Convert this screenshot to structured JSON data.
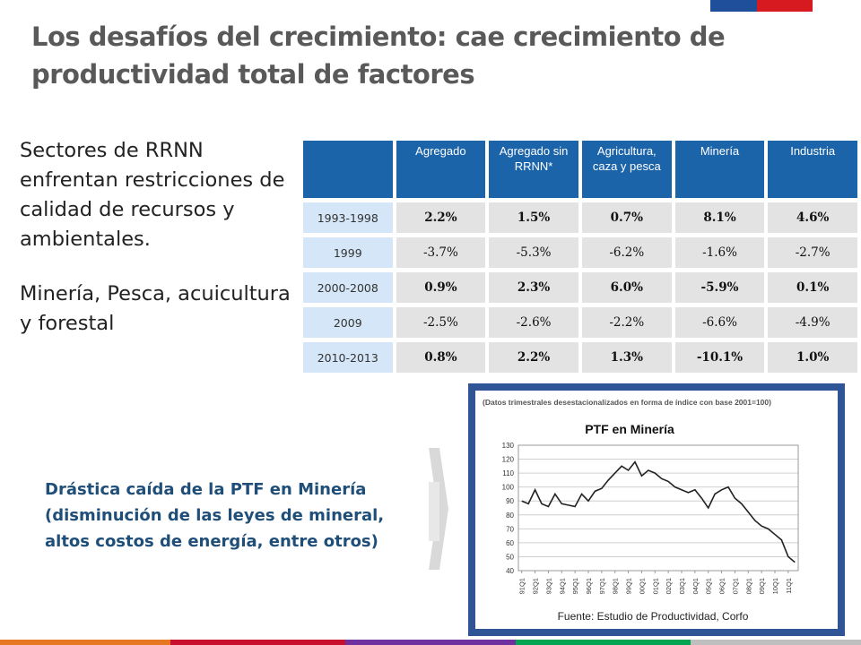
{
  "title": "Los desafíos del crecimiento: cae crecimiento de productividad total de factores",
  "left_text": [
    "Sectores de RRNN enfrentan restricciones de calidad de recursos y ambientales.",
    "Minería, Pesca, acuicultura y forestal"
  ],
  "callout": "Drástica caída de la PTF en Minería (disminución de las leyes de mineral, altos costos de energía, entre otros)",
  "table": {
    "header": [
      "Agregado",
      "Agregado sin RRNN*",
      "Agricultura, caza y pesca",
      "Minería",
      "Industria"
    ],
    "rows": [
      [
        "1993-1998",
        "2.2%",
        "1.5%",
        "0.7%",
        "8.1%",
        "4.6%"
      ],
      [
        "1999",
        "-3.7%",
        "-5.3%",
        "-6.2%",
        "-1.6%",
        "-2.7%"
      ],
      [
        "2000-2008",
        "0.9%",
        "2.3%",
        "6.0%",
        "-5.9%",
        "0.1%"
      ],
      [
        "2009",
        "-2.5%",
        "-2.6%",
        "-2.2%",
        "-6.6%",
        "-4.9%"
      ],
      [
        "2010-2013",
        "0.8%",
        "2.2%",
        "1.3%",
        "-10.1%",
        "1.0%"
      ]
    ]
  },
  "chart_data": {
    "type": "line",
    "title": "PTF en Minería",
    "note": "(Datos trimestrales desestacionalizados en forma de índice con base 2001=100)",
    "source": "Fuente: Estudio de Productividad, Corfo",
    "categories": [
      "91Q1",
      null,
      "92Q1",
      null,
      "93Q1",
      null,
      "94Q1",
      null,
      "95Q1",
      null,
      "96Q1",
      null,
      "97Q1",
      null,
      "98Q1",
      null,
      "99Q1",
      null,
      "00Q1",
      null,
      "01Q1",
      null,
      "02Q1",
      null,
      "03Q1",
      null,
      "04Q1",
      null,
      "05Q1",
      null,
      "06Q1",
      null,
      "07Q1",
      null,
      "08Q1",
      null,
      "09Q1",
      null,
      "10Q1",
      null,
      "11Q1",
      null
    ],
    "series": [
      {
        "color": "#222222",
        "values": [
          90,
          88,
          98,
          88,
          86,
          95,
          88,
          87,
          86,
          95,
          90,
          97,
          99,
          105,
          110,
          115,
          112,
          118,
          108,
          112,
          110,
          106,
          104,
          100,
          98,
          96,
          98,
          92,
          85,
          95,
          98,
          100,
          92,
          88,
          82,
          76,
          72,
          70,
          66,
          62,
          50,
          46
        ]
      }
    ],
    "ylim": [
      40,
      130
    ],
    "yticks": [
      40,
      50,
      60,
      70,
      80,
      90,
      100,
      110,
      120,
      130
    ],
    "grid": true
  }
}
